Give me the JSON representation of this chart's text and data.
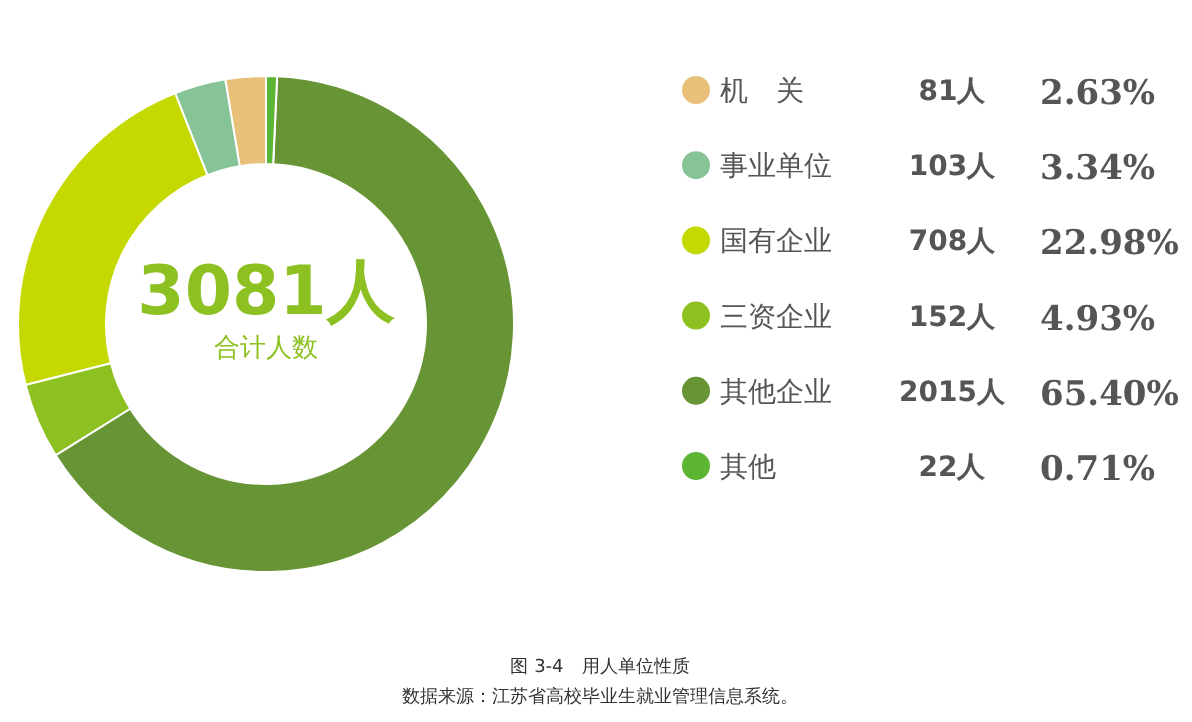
{
  "chart_data": {
    "type": "donut",
    "title": "图 3-4　用人单位性质",
    "categories": [
      "机　关",
      "事业单位",
      "国有企业",
      "三资企业",
      "其他企业",
      "其他"
    ],
    "values": [
      81,
      103,
      708,
      152,
      2015,
      22
    ],
    "value_labels": [
      "81人",
      "103人",
      "708人",
      "152人",
      "2015人",
      "22人"
    ],
    "colors": [
      "#e8c07a",
      "#86c497",
      "#c5d800",
      "#8dc021",
      "#679434",
      "#5db534"
    ],
    "legend": "right",
    "annotations": [
      "2.63%",
      "3.34%",
      "22.98%",
      "4.93%",
      "65.40%",
      "0.71%",
      "3081人",
      "合计人数",
      "数据来源：江苏省高校毕业生就业管理信息系统。"
    ]
  }
}
